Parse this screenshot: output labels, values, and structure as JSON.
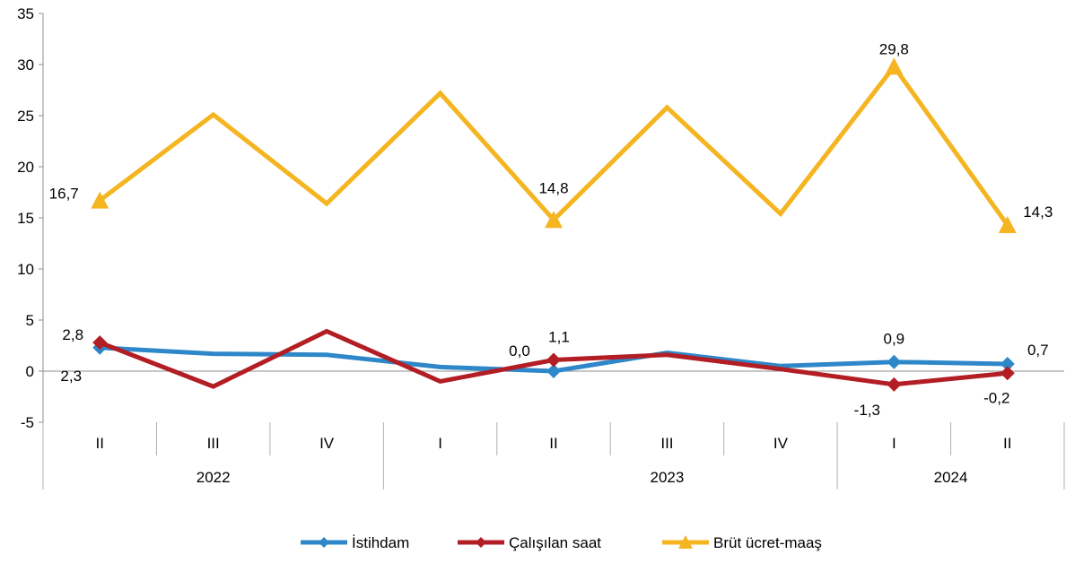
{
  "chart_data": {
    "type": "line",
    "categories": [
      "II",
      "III",
      "IV",
      "I",
      "II",
      "III",
      "IV",
      "I",
      "II"
    ],
    "year_groups": [
      {
        "label": "2022",
        "start": 0,
        "end": 2
      },
      {
        "label": "2023",
        "start": 3,
        "end": 7
      },
      {
        "label": "2024",
        "start": 7,
        "end": 8
      }
    ],
    "ylim": [
      -5,
      35
    ],
    "yticks": [
      "-5",
      "0",
      "5",
      "10",
      "15",
      "20",
      "25",
      "30",
      "35"
    ],
    "ytick_values": [
      -5,
      0,
      5,
      10,
      15,
      20,
      25,
      30,
      35
    ],
    "grid": false,
    "legend_position": "bottom",
    "series": [
      {
        "name": "İstihdam",
        "color": "#2e87c8",
        "marker": "diamond",
        "values": [
          2.3,
          1.7,
          1.6,
          0.4,
          0.0,
          1.8,
          0.5,
          0.9,
          0.7
        ],
        "labels": [
          "2,3",
          "",
          "",
          "",
          "0,0",
          "",
          "",
          "0,9",
          "0,7"
        ]
      },
      {
        "name": "Çalışılan saat",
        "color": "#b31d24",
        "marker": "diamond",
        "values": [
          2.8,
          -1.5,
          3.9,
          -1.0,
          1.1,
          1.6,
          0.2,
          -1.3,
          -0.2
        ],
        "labels": [
          "2,8",
          "",
          "",
          "",
          "1,1",
          "",
          "",
          "-1,3",
          "-0,2"
        ]
      },
      {
        "name": "Brüt ücret-maaş",
        "color": "#f5b521",
        "marker": "triangle",
        "values": [
          16.7,
          25.1,
          16.4,
          27.2,
          14.8,
          25.8,
          15.4,
          29.8,
          14.3
        ],
        "labels": [
          "16,7",
          "",
          "",
          "",
          "14,8",
          "",
          "",
          "29,8",
          "14,3"
        ]
      }
    ]
  }
}
